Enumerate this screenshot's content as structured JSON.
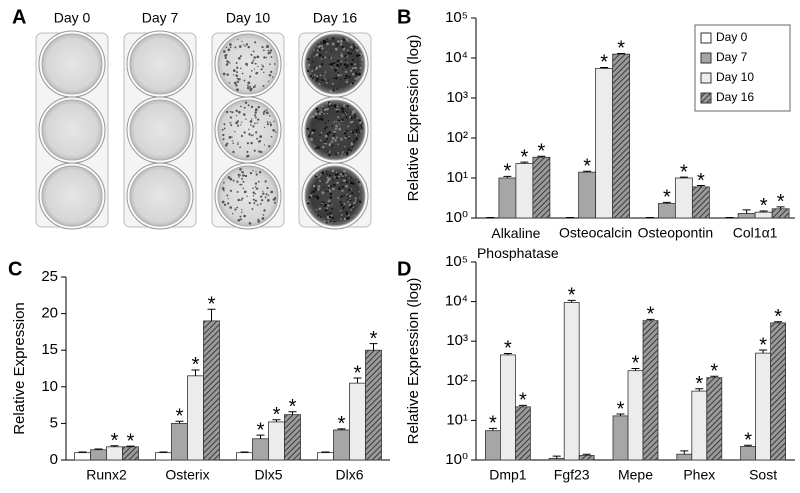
{
  "panel_labels": [
    "A",
    "B",
    "C",
    "D"
  ],
  "image_panel": {
    "columns": [
      "Day 0",
      "Day 7",
      "Day 10",
      "Day 16"
    ]
  },
  "chart_data": [
    {
      "type": "bar",
      "ylabel": "Relative Expression (log)",
      "log_scale": true,
      "legend": "upper right",
      "annotation": "*",
      "categories": [
        "Alkaline Phosphatase",
        "Osteocalcin",
        "Osteopontin",
        "Col1α1"
      ],
      "ylim": [
        1,
        100000
      ],
      "yticks": [
        {
          "value": 1,
          "label": "10⁰"
        },
        {
          "value": 10,
          "label": "10¹"
        },
        {
          "value": 100,
          "label": "10²"
        },
        {
          "value": 1000,
          "label": "10³"
        },
        {
          "value": 10000,
          "label": "10⁴"
        },
        {
          "value": 100000,
          "label": "10⁵"
        }
      ],
      "series": [
        {
          "name": "Day 0",
          "color": "#ffffff",
          "values": [
            1,
            1,
            1,
            1
          ],
          "errors": [
            0.03,
            0.03,
            0.03,
            0.03
          ],
          "significant": [
            false,
            false,
            false,
            false
          ]
        },
        {
          "name": "Day 7",
          "color": "#a6a6a6",
          "values": [
            10,
            14,
            2.3,
            1.3
          ],
          "errors": [
            1,
            0.8,
            0.15,
            0.3
          ],
          "significant": [
            true,
            true,
            true,
            false
          ]
        },
        {
          "name": "Day 10",
          "color": "#ececec",
          "values": [
            23,
            5500,
            10,
            1.4
          ],
          "errors": [
            2,
            300,
            0.5,
            0.1
          ],
          "significant": [
            true,
            true,
            true,
            true
          ]
        },
        {
          "name": "Day 16",
          "color": "#7f7f7f",
          "pattern": "hatch",
          "values": [
            33,
            12500,
            6,
            1.7
          ],
          "errors": [
            2,
            500,
            0.5,
            0.2
          ],
          "significant": [
            true,
            true,
            true,
            true
          ]
        }
      ]
    },
    {
      "type": "bar",
      "ylabel": "Relative Expression",
      "log_scale": false,
      "annotation": "*",
      "categories": [
        "Runx2",
        "Osterix",
        "Dlx5",
        "Dlx6"
      ],
      "ylim": [
        0,
        25
      ],
      "yticks": [
        0,
        5,
        10,
        15,
        20,
        25
      ],
      "series": [
        {
          "color": "#ffffff",
          "values": [
            1,
            1,
            1,
            1
          ],
          "errors": [
            0.1,
            0.1,
            0.1,
            0.1
          ],
          "significant": [
            false,
            false,
            false,
            false
          ]
        },
        {
          "color": "#a6a6a6",
          "values": [
            1.4,
            5,
            2.9,
            4.1
          ],
          "errors": [
            0.1,
            0.3,
            0.5,
            0.15
          ],
          "significant": [
            false,
            true,
            true,
            true
          ]
        },
        {
          "color": "#ececec",
          "values": [
            1.8,
            11.5,
            5.2,
            10.5
          ],
          "errors": [
            0.15,
            0.8,
            0.3,
            0.7
          ],
          "significant": [
            true,
            true,
            true,
            true
          ]
        },
        {
          "color": "#7f7f7f",
          "pattern": "hatch",
          "values": [
            1.8,
            19,
            6.2,
            15
          ],
          "errors": [
            0.1,
            1.6,
            0.4,
            0.9
          ],
          "significant": [
            true,
            true,
            true,
            true
          ]
        }
      ]
    },
    {
      "type": "bar",
      "ylabel": "Relative Expression (log)",
      "log_scale": true,
      "annotation": "*",
      "categories": [
        "Dmp1",
        "Fgf23",
        "Mepe",
        "Phex",
        "Sost"
      ],
      "ylim": [
        1,
        100000
      ],
      "yticks": [
        {
          "value": 1,
          "label": "10⁰"
        },
        {
          "value": 10,
          "label": "10¹"
        },
        {
          "value": 100,
          "label": "10²"
        },
        {
          "value": 1000,
          "label": "10³"
        },
        {
          "value": 10000,
          "label": "10⁴"
        },
        {
          "value": 100000,
          "label": "10⁵"
        }
      ],
      "series": [
        {
          "color": "#a6a6a6",
          "values": [
            5.5,
            1.1,
            13,
            1.4,
            2.2
          ],
          "errors": [
            0.8,
            0.15,
            1.5,
            0.3,
            0.15
          ],
          "significant": [
            true,
            false,
            true,
            false,
            true
          ]
        },
        {
          "color": "#ececec",
          "values": [
            450,
            9500,
            180,
            55,
            500
          ],
          "errors": [
            40,
            1200,
            25,
            8,
            100
          ],
          "significant": [
            true,
            true,
            true,
            true,
            true
          ]
        },
        {
          "color": "#7f7f7f",
          "pattern": "hatch",
          "values": [
            22,
            1.3,
            3300,
            120,
            2900
          ],
          "errors": [
            2,
            0.1,
            250,
            10,
            200
          ],
          "significant": [
            true,
            false,
            true,
            true,
            true
          ]
        }
      ]
    }
  ]
}
